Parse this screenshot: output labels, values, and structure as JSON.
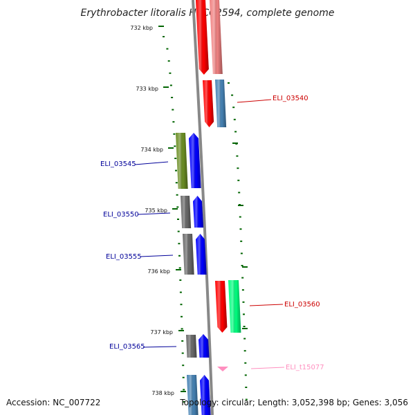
{
  "title": "Erythrobacter litoralis HTCC2594, complete genome",
  "accession": "Accession: NC_007722",
  "topology": "Topology: circular; Length: 3,052,398 bp; Genes: 3,056",
  "ticks": [
    "732 kbp",
    "733 kbp",
    "734 kbp",
    "735 kbp",
    "736 kbp",
    "737 kbp",
    "738 kbp"
  ],
  "genes": [
    {
      "label": "ELI_03540",
      "color": "#cc0000"
    },
    {
      "label": "ELI_03545",
      "color": "#000099"
    },
    {
      "label": "ELI_03550",
      "color": "#000099"
    },
    {
      "label": "ELI_03555",
      "color": "#000099"
    },
    {
      "label": "ELI_03560",
      "color": "#cc0000"
    },
    {
      "label": "ELI_03565",
      "color": "#000099"
    },
    {
      "label": "ELI_t15077",
      "color": "#ff8fbf"
    }
  ],
  "colors": {
    "red": "#ff0000",
    "light_red": "#f08080",
    "blue": "#0000ff",
    "steel_blue": "#4682b4",
    "olive": "#6b8e23",
    "gray": "#696969",
    "spring_green": "#00ff7f",
    "pink": "#ff8fbf",
    "backbone": "#888888",
    "ruler": "#006400"
  }
}
